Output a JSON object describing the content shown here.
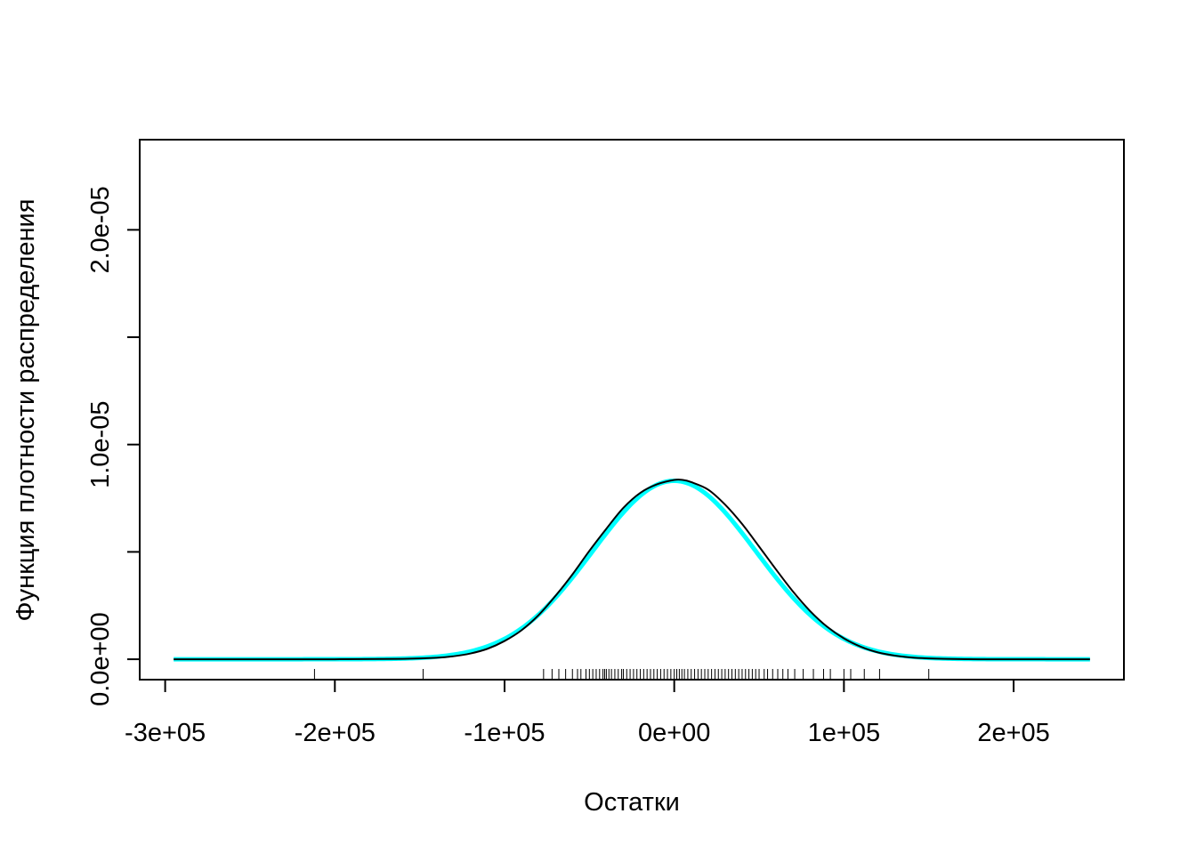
{
  "chart_data": {
    "type": "line",
    "title": "",
    "xlabel": "Остатки",
    "ylabel": "Функция плотности распределения",
    "xlim": [
      -315000,
      265000
    ],
    "ylim": [
      -9.5e-07,
      2.42e-05
    ],
    "x_ticks": [
      {
        "value": -300000,
        "label": "-3e+05"
      },
      {
        "value": -200000,
        "label": "-2e+05"
      },
      {
        "value": -100000,
        "label": "-1e+05"
      },
      {
        "value": 0,
        "label": "0e+00"
      },
      {
        "value": 100000,
        "label": "1e+05"
      },
      {
        "value": 200000,
        "label": "2e+05"
      }
    ],
    "y_ticks": [
      {
        "value": 0,
        "label": "0.0e+00"
      },
      {
        "value": 5e-06,
        "label": ""
      },
      {
        "value": 1e-05,
        "label": "1.0e-05"
      },
      {
        "value": 1.5e-05,
        "label": ""
      },
      {
        "value": 2e-05,
        "label": "2.0e-05"
      }
    ],
    "grid": false,
    "legend": "none",
    "series": [
      {
        "color": "#00ffff",
        "curve": "normal",
        "mean": 0,
        "sd": 48000,
        "x_range": [
          -295000,
          245000
        ]
      },
      {
        "color": "#000000",
        "curve": "kde",
        "x": [
          -295000,
          -250000,
          -200000,
          -160000,
          -140000,
          -130000,
          -120000,
          -110000,
          -100000,
          -90000,
          -80000,
          -70000,
          -60000,
          -50000,
          -40000,
          -30000,
          -20000,
          -10000,
          0,
          5000,
          10000,
          20000,
          30000,
          40000,
          50000,
          60000,
          70000,
          80000,
          90000,
          100000,
          110000,
          120000,
          130000,
          140000,
          150000,
          160000,
          180000,
          200000,
          220000,
          245000
        ],
        "y": [
          0,
          0,
          0,
          2e-08,
          7e-08,
          1.4e-07,
          2.7e-07,
          4.9e-07,
          8.5e-07,
          1.35e-06,
          2.05e-06,
          2.95e-06,
          3.95e-06,
          5.05e-06,
          6.08e-06,
          7.05e-06,
          7.75e-06,
          8.15e-06,
          8.35e-06,
          8.35e-06,
          8.25e-06,
          7.9e-06,
          7.2e-06,
          6.3e-06,
          5.25e-06,
          4.18e-06,
          3.15e-06,
          2.25e-06,
          1.52e-06,
          9.7e-07,
          5.8e-07,
          3.2e-07,
          1.7e-07,
          8e-08,
          4e-08,
          2e-08,
          0,
          0,
          0,
          0
        ]
      }
    ],
    "rug": {
      "color": "#000000",
      "values": [
        -212000,
        -148000,
        -77000,
        -72000,
        -68000,
        -64000,
        -60000,
        -57000,
        -55000,
        -52000,
        -50000,
        -48000,
        -46000,
        -44000,
        -42000,
        -41000,
        -40000,
        -38500,
        -37000,
        -35000,
        -33000,
        -31000,
        -30000,
        -28000,
        -26000,
        -24000,
        -22000,
        -20000,
        -18000,
        -16000,
        -14000,
        -12000,
        -10000,
        -8000,
        -6000,
        -4000,
        -2000,
        0,
        1500,
        3000,
        4500,
        6000,
        8000,
        10000,
        12000,
        14000,
        16000,
        18000,
        20000,
        22000,
        24000,
        26000,
        28000,
        30000,
        32000,
        34000,
        36000,
        38000,
        40000,
        42000,
        44000,
        46000,
        48000,
        50000,
        53000,
        55000,
        58000,
        61000,
        64000,
        67000,
        71000,
        76000,
        82000,
        88000,
        92000,
        100000,
        104000,
        112000,
        121000,
        150000
      ]
    }
  }
}
